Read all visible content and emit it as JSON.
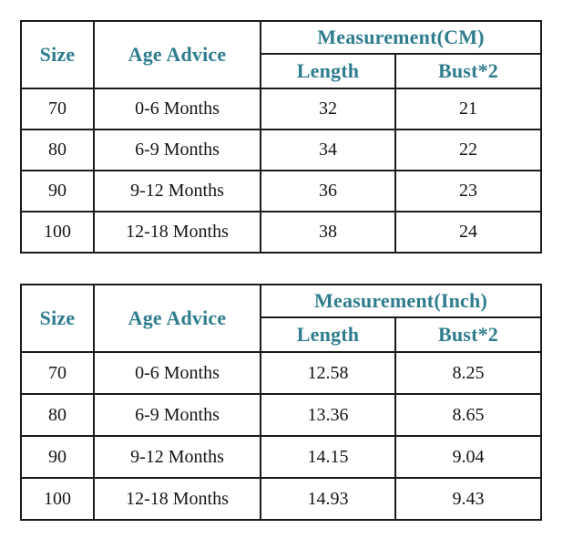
{
  "style": {
    "background": "#ffffff",
    "header_text_color": "#2e7d8e",
    "body_text_color": "#151515",
    "border_color": "#1b1b1b"
  },
  "chart_data": [
    {
      "type": "table",
      "title": "Measurement(CM)",
      "header": {
        "size": "Size",
        "age_advice": "Age Advice",
        "measurement_group": "Measurement(CM)",
        "length": "Length",
        "bust2": "Bust*2"
      },
      "rows": [
        {
          "size": "70",
          "age": "0-6 Months",
          "length": "32",
          "bust": "21"
        },
        {
          "size": "80",
          "age": "6-9 Months",
          "length": "34",
          "bust": "22"
        },
        {
          "size": "90",
          "age": "9-12 Months",
          "length": "36",
          "bust": "23"
        },
        {
          "size": "100",
          "age": "12-18 Months",
          "length": "38",
          "bust": "24"
        }
      ]
    },
    {
      "type": "table",
      "title": "Measurement(Inch)",
      "header": {
        "size": "Size",
        "age_advice": "Age Advice",
        "measurement_group": "Measurement(Inch)",
        "length": "Length",
        "bust2": "Bust*2"
      },
      "rows": [
        {
          "size": "70",
          "age": "0-6 Months",
          "length": "12.58",
          "bust": "8.25"
        },
        {
          "size": "80",
          "age": "6-9 Months",
          "length": "13.36",
          "bust": "8.65"
        },
        {
          "size": "90",
          "age": "9-12 Months",
          "length": "14.15",
          "bust": "9.04"
        },
        {
          "size": "100",
          "age": "12-18 Months",
          "length": "14.93",
          "bust": "9.43"
        }
      ]
    }
  ]
}
